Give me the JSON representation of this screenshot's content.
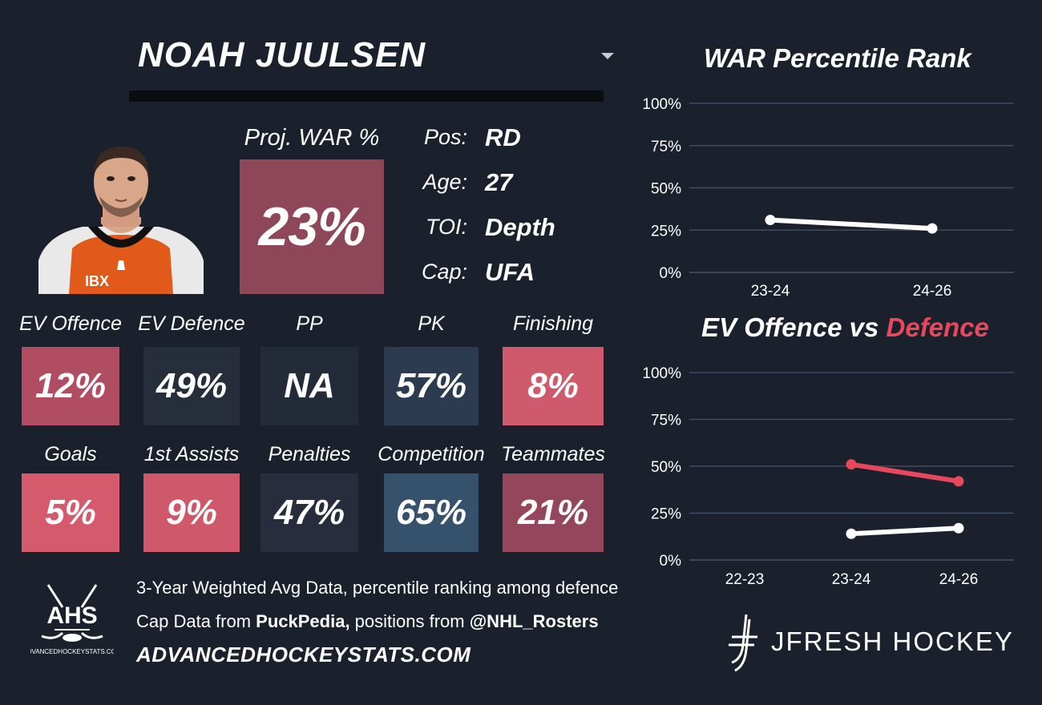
{
  "player": {
    "name": "NOAH JUULSEN",
    "proj_war_label": "Proj. WAR %",
    "proj_war_value": "23%",
    "info": [
      {
        "label": "Pos:",
        "value": "RD"
      },
      {
        "label": "Age:",
        "value": "27"
      },
      {
        "label": "TOI:",
        "value": "Depth"
      },
      {
        "label": "Cap:",
        "value": "UFA"
      }
    ],
    "headshot": {
      "jersey_text": "IBX"
    }
  },
  "stats_row1": [
    {
      "label": "EV Offence",
      "value": "12%",
      "color": "#b04d63"
    },
    {
      "label": "EV Defence",
      "value": "49%",
      "color": "#262d3b"
    },
    {
      "label": "PP",
      "value": "NA",
      "color": "#242b38"
    },
    {
      "label": "PK",
      "value": "57%",
      "color": "#2c3b50"
    },
    {
      "label": "Finishing",
      "value": "8%",
      "color": "#cf5a6b"
    }
  ],
  "stats_row2": [
    {
      "label": "Goals",
      "value": "5%",
      "color": "#d55a6b"
    },
    {
      "label": "1st Assists",
      "value": "9%",
      "color": "#cf586a"
    },
    {
      "label": "Penalties",
      "value": "47%",
      "color": "#282d3d"
    },
    {
      "label": "Competition",
      "value": "65%",
      "color": "#36516c"
    },
    {
      "label": "Teammates",
      "value": "21%",
      "color": "#94475c"
    }
  ],
  "proj_war_color": "#8e4659",
  "footer": {
    "line1": "3-Year Weighted Avg Data, percentile ranking among defence",
    "line2_prefix": "Cap Data from ",
    "line2_bold1": "PuckPedia,",
    "line2_mid": " positions from ",
    "line2_bold2": "@NHL_Rosters",
    "site": "ADVANCEDHOCKEYSTATS.COM",
    "ahs_logo_text": "AHS",
    "ahs_logo_subtext": "ADVANCEDHOCKEYSTATS.COM",
    "brand": "JFRESH HOCKEY"
  },
  "chart_data": [
    {
      "type": "line",
      "title": "WAR Percentile Rank",
      "categories": [
        "23-24",
        "24-26"
      ],
      "series": [
        {
          "values": [
            31,
            26
          ],
          "color": "#ffffff"
        }
      ],
      "ylim": [
        0,
        100
      ],
      "yticks": [
        "0%",
        "25%",
        "50%",
        "75%",
        "100%"
      ],
      "grid": true
    },
    {
      "type": "line",
      "title_part1": "EV Offence vs ",
      "title_part2": "Defence",
      "title_part2_color": "#e8485c",
      "categories": [
        "22-23",
        "23-24",
        "24-26"
      ],
      "series": [
        {
          "values": [
            null,
            14,
            17
          ],
          "color": "#ffffff"
        },
        {
          "values": [
            null,
            51,
            42
          ],
          "color": "#e8485c"
        }
      ],
      "ylim": [
        0,
        100
      ],
      "yticks": [
        "0%",
        "25%",
        "50%",
        "75%",
        "100%"
      ],
      "grid": true
    }
  ]
}
